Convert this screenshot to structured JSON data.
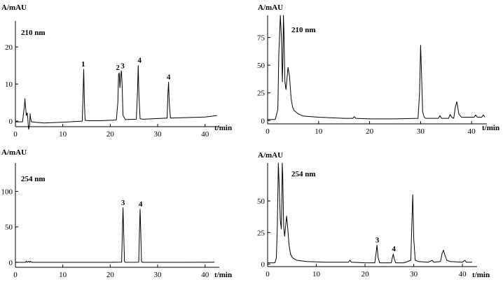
{
  "chart_data": [
    {
      "type": "line",
      "ylabel": "A/mAU",
      "xlabel": "t/min",
      "annotation": "210 nm",
      "xlim": [
        0,
        43
      ],
      "ylim": [
        -1.5,
        27
      ],
      "xticks": [
        0,
        10,
        20,
        30,
        40
      ],
      "yticks": [
        0,
        10,
        20
      ],
      "series": [
        {
          "x": [
            0,
            1.5,
            1.75,
            1.9,
            2.0,
            2.1,
            2.3,
            2.5,
            2.6,
            2.7,
            2.8,
            3.0,
            3.1,
            3.2,
            3.4,
            4,
            6,
            10,
            14.1,
            14.25,
            14.4,
            14.55,
            14.7,
            15.5,
            18,
            21.3,
            21.6,
            21.75,
            21.9,
            22.05,
            22.2,
            22.35,
            22.5,
            22.7,
            23.2,
            25.5,
            25.75,
            25.9,
            26.05,
            26.3,
            27,
            32,
            32.15,
            32.3,
            32.45,
            32.7,
            35,
            40,
            42.5
          ],
          "y": [
            -0.2,
            -0.2,
            2.5,
            4.0,
            6.0,
            4.5,
            1.5,
            2.2,
            1.0,
            -1.0,
            -2.2,
            -1.0,
            2.0,
            0.8,
            -0.2,
            -0.3,
            -0.5,
            -0.3,
            0,
            6,
            14,
            5,
            0.2,
            0.1,
            0.1,
            0.3,
            5,
            12.5,
            13,
            9,
            12,
            13.5,
            10,
            1.5,
            0.4,
            0.5,
            8,
            15,
            7,
            0.6,
            0.5,
            0.8,
            7,
            10.5,
            5,
            0.8,
            0.9,
            1.1,
            1.5
          ]
        }
      ],
      "peak_labels": [
        {
          "x": 14.3,
          "y": 14,
          "text": "1"
        },
        {
          "x": 21.6,
          "y": 13,
          "text": "2"
        },
        {
          "x": 22.6,
          "y": 13.5,
          "text": "3"
        },
        {
          "x": 26.2,
          "y": 15,
          "text": "4"
        },
        {
          "x": 32.3,
          "y": 10.5,
          "text": "4"
        }
      ]
    },
    {
      "type": "line",
      "ylabel": "A/mAU",
      "xlabel": "t/min",
      "annotation": "210 nm",
      "xlim": [
        0,
        43
      ],
      "ylim": [
        -3,
        95
      ],
      "xticks": [
        0,
        10,
        20,
        30,
        40
      ],
      "yticks": [
        0,
        25,
        50,
        75
      ],
      "series": [
        {
          "x": [
            0,
            1.5,
            2.0,
            2.2,
            2.5,
            2.7,
            2.9,
            3.0,
            3.1,
            3.2,
            3.4,
            3.6,
            3.8,
            4.0,
            4.3,
            4.6,
            4.9,
            5.2,
            6,
            7,
            10,
            15,
            16.7,
            17,
            17.3,
            20,
            25,
            29.5,
            29.8,
            30.0,
            30.2,
            30.4,
            30.7,
            31,
            33.5,
            33.8,
            34.1,
            35.5,
            35.8,
            36.1,
            36.5,
            36.8,
            37.1,
            37.5,
            38,
            40.5,
            40.8,
            41.1,
            42,
            42.3,
            42.6
          ],
          "y": [
            1,
            1,
            10,
            60,
            95,
            75,
            35,
            55,
            95,
            80,
            35,
            28,
            38,
            48,
            40,
            20,
            12,
            9,
            6,
            4,
            3,
            2,
            2,
            3.5,
            2,
            1.5,
            1.5,
            2,
            25,
            68,
            40,
            8,
            3,
            2,
            2,
            4.5,
            2,
            2,
            5.5,
            3,
            2,
            12,
            17,
            6,
            3,
            3,
            5,
            3,
            3,
            5,
            3
          ]
        }
      ]
    },
    {
      "type": "line",
      "ylabel": "A/mAU",
      "xlabel": "t/min",
      "annotation": "254 nm",
      "xlim": [
        0,
        43
      ],
      "ylim": [
        -7,
        140
      ],
      "xticks": [
        0,
        10,
        20,
        30,
        40
      ],
      "yticks": [
        0,
        50,
        100
      ],
      "series": [
        {
          "x": [
            0,
            2.1,
            2.3,
            2.5,
            2.8,
            3.0,
            3.2,
            3.4,
            5,
            10,
            20,
            22.4,
            22.55,
            22.7,
            22.85,
            23.0,
            23.2,
            26,
            26.15,
            26.3,
            26.45,
            26.6,
            26.8,
            30,
            42
          ],
          "y": [
            0,
            0,
            1.8,
            0,
            1.5,
            0,
            1.5,
            0,
            0,
            0,
            0,
            0.3,
            40,
            77,
            40,
            1,
            0,
            0.2,
            40,
            75,
            40,
            1,
            0,
            0,
            0.2
          ]
        }
      ],
      "peak_labels": [
        {
          "x": 22.7,
          "y": 77,
          "text": "3"
        },
        {
          "x": 26.4,
          "y": 75,
          "text": "4"
        }
      ]
    },
    {
      "type": "line",
      "ylabel": "A/mAU",
      "xlabel": "t/min",
      "annotation": "254 nm",
      "xlim": [
        0,
        43
      ],
      "ylim": [
        -2,
        80
      ],
      "xticks": [
        0,
        10,
        20,
        30,
        40
      ],
      "yticks": [
        0,
        25,
        50
      ],
      "series": [
        {
          "x": [
            0,
            1.5,
            1.8,
            2.0,
            2.2,
            2.4,
            2.6,
            2.8,
            2.9,
            3.0,
            3.1,
            3.3,
            3.5,
            3.7,
            3.9,
            4.1,
            4.4,
            4.7,
            5.1,
            6,
            8,
            12,
            16.6,
            16.9,
            17.2,
            20,
            22.0,
            22.25,
            22.45,
            22.7,
            23,
            25.4,
            25.6,
            25.8,
            26.0,
            26.3,
            28,
            29.4,
            29.6,
            29.8,
            30.0,
            30.3,
            31,
            33,
            33.8,
            34.1,
            35.5,
            35.8,
            36.1,
            36.4,
            36.8,
            37.5,
            40,
            40.5,
            40.8,
            41.5,
            42
          ],
          "y": [
            1,
            1,
            5,
            30,
            80,
            60,
            35,
            28,
            45,
            80,
            70,
            30,
            22,
            30,
            38,
            30,
            15,
            8,
            5,
            3,
            2,
            1.5,
            1.5,
            3,
            1.5,
            1,
            1,
            8,
            15,
            5,
            1,
            1,
            5,
            8,
            4,
            1,
            1,
            3,
            30,
            55,
            20,
            3,
            2,
            1.5,
            3,
            1.5,
            2,
            8,
            11,
            7,
            3,
            2,
            1.5,
            3,
            1.5,
            1.5,
            1.5
          ]
        }
      ],
      "peak_labels": [
        {
          "x": 22.5,
          "y": 15,
          "text": "3"
        },
        {
          "x": 25.9,
          "y": 8,
          "text": "4"
        }
      ]
    }
  ]
}
